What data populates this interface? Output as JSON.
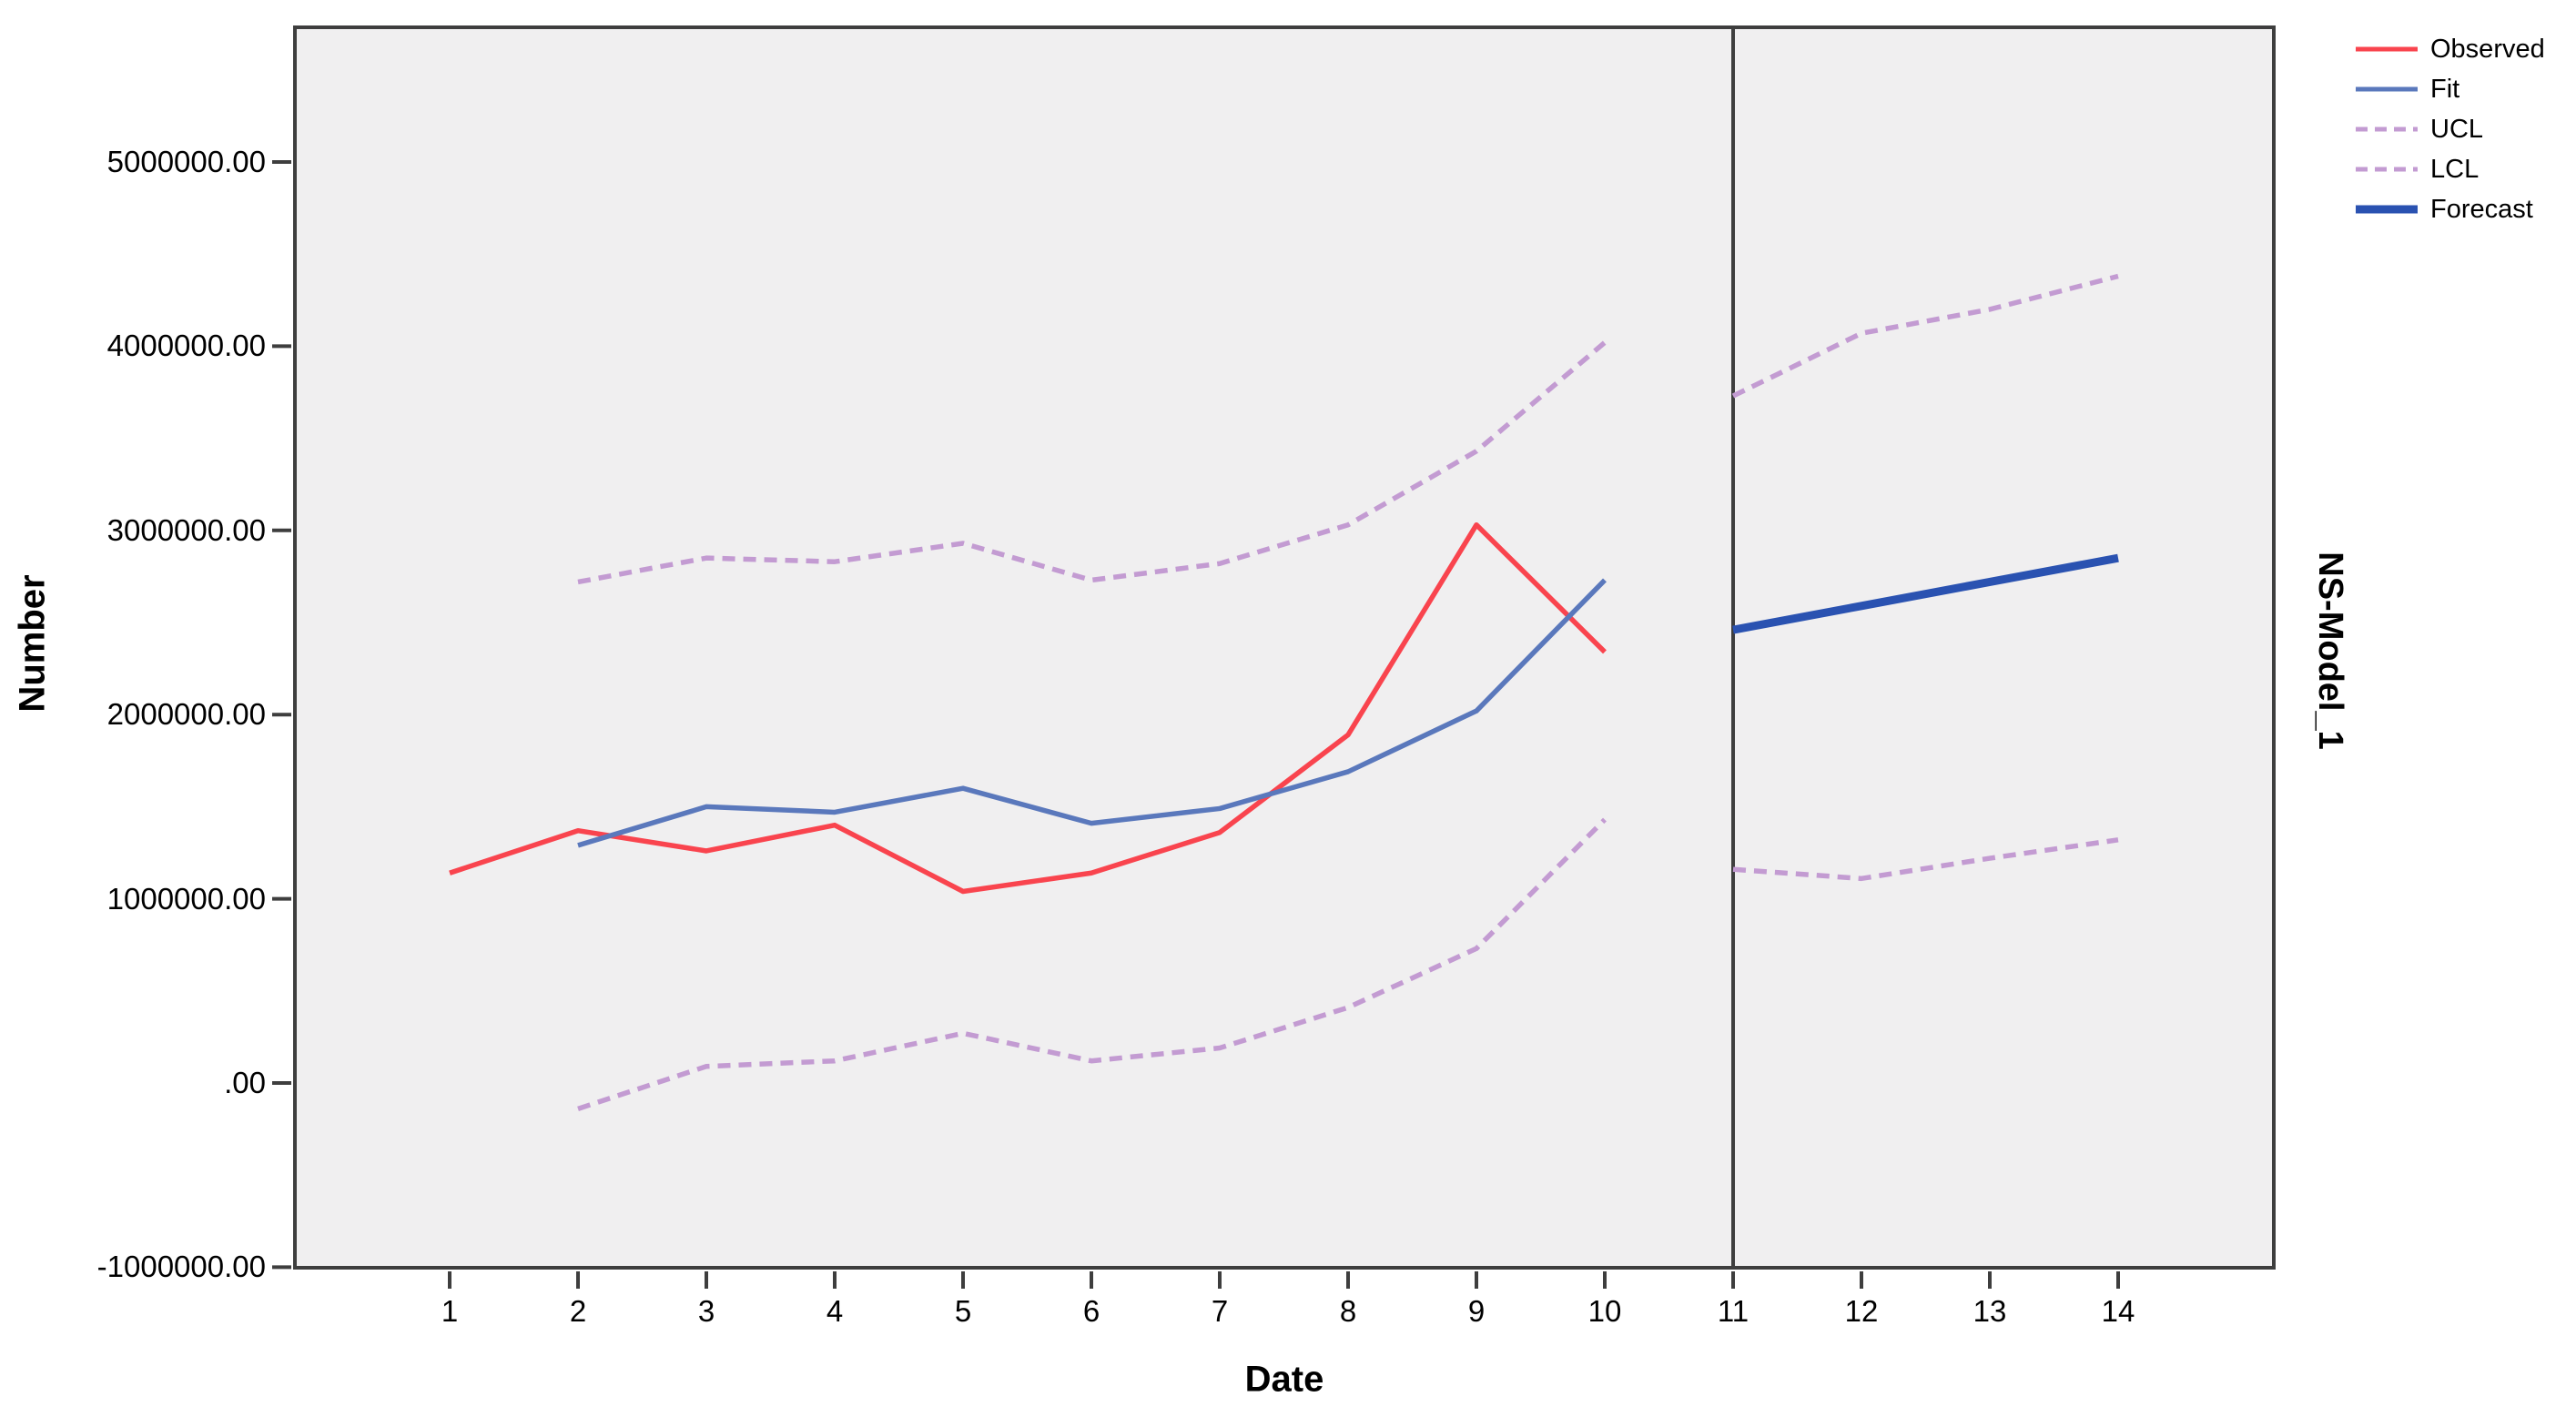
{
  "chart_data": {
    "type": "line",
    "title": "",
    "xlabel": "Date",
    "ylabel": "Number",
    "panel_label": "NS-Model_1",
    "grid": false,
    "legend_position": "top-right-outside",
    "xlim": [
      -0.2,
      15.2
    ],
    "ylim": [
      -1050000,
      5750000
    ],
    "forecast_boundary_x": 11,
    "x_ticks": [
      "1",
      "2",
      "3",
      "4",
      "5",
      "6",
      "7",
      "8",
      "9",
      "10",
      "11",
      "12",
      "13",
      "14"
    ],
    "y_axis_ticks": [
      {
        "value": 5000000,
        "label": "5000000.00"
      },
      {
        "value": 4000000,
        "label": "4000000.00"
      },
      {
        "value": 3000000,
        "label": "3000000.00"
      },
      {
        "value": 2000000,
        "label": "2000000.00"
      },
      {
        "value": 1000000,
        "label": "1000000.00"
      },
      {
        "value": 0,
        "label": ".00"
      },
      {
        "value": -1000000,
        "label": "-1000000.00"
      }
    ],
    "series": [
      {
        "name": "Observed",
        "color": "#F9444E",
        "style": "solid",
        "segments": [
          [
            [
              1,
              1140000
            ],
            [
              2,
              1370000
            ],
            [
              3,
              1260000
            ],
            [
              4,
              1400000
            ],
            [
              5,
              1040000
            ],
            [
              6,
              1140000
            ],
            [
              7,
              1360000
            ],
            [
              8,
              1890000
            ],
            [
              9,
              3030000
            ],
            [
              10,
              2340000
            ]
          ]
        ]
      },
      {
        "name": "Fit",
        "color": "#5A78BC",
        "style": "solid",
        "segments": [
          [
            [
              2,
              1290000
            ],
            [
              3,
              1500000
            ],
            [
              4,
              1470000
            ],
            [
              5,
              1600000
            ],
            [
              6,
              1410000
            ],
            [
              7,
              1490000
            ],
            [
              8,
              1690000
            ],
            [
              9,
              2020000
            ],
            [
              10,
              2730000
            ]
          ]
        ]
      },
      {
        "name": "UCL",
        "color": "#C39BD2",
        "style": "dashed",
        "segments": [
          [
            [
              2,
              2720000
            ],
            [
              3,
              2850000
            ],
            [
              4,
              2830000
            ],
            [
              5,
              2930000
            ],
            [
              6,
              2730000
            ],
            [
              7,
              2820000
            ],
            [
              8,
              3030000
            ],
            [
              9,
              3430000
            ],
            [
              10,
              4020000
            ]
          ],
          [
            [
              11,
              3730000
            ],
            [
              12,
              4070000
            ],
            [
              13,
              4200000
            ],
            [
              14,
              4380000
            ]
          ]
        ]
      },
      {
        "name": "LCL",
        "color": "#C39BD2",
        "style": "dashed",
        "segments": [
          [
            [
              2,
              -140000
            ],
            [
              3,
              90000
            ],
            [
              4,
              120000
            ],
            [
              5,
              270000
            ],
            [
              6,
              120000
            ],
            [
              7,
              190000
            ],
            [
              8,
              410000
            ],
            [
              9,
              730000
            ],
            [
              10,
              1430000
            ]
          ],
          [
            [
              11,
              1160000
            ],
            [
              12,
              1110000
            ],
            [
              13,
              1220000
            ],
            [
              14,
              1320000
            ]
          ]
        ]
      },
      {
        "name": "Forecast",
        "color": "#2A52B1",
        "style": "solid-bold",
        "segments": [
          [
            [
              11,
              2460000
            ],
            [
              12,
              2590000
            ],
            [
              13,
              2720000
            ],
            [
              14,
              2850000
            ]
          ]
        ]
      }
    ]
  },
  "legend": {
    "items": [
      {
        "label": "Observed",
        "color": "#F9444E",
        "style": "solid"
      },
      {
        "label": "Fit",
        "color": "#5A78BC",
        "style": "solid"
      },
      {
        "label": "UCL",
        "color": "#C39BD2",
        "style": "dashed"
      },
      {
        "label": "LCL",
        "color": "#C39BD2",
        "style": "dashed"
      },
      {
        "label": "Forecast",
        "color": "#2A52B1",
        "style": "solid-bold"
      }
    ]
  },
  "colors": {
    "plot_background": "#F0EFF0",
    "page_background": "#FFFFFF",
    "frame": "#3E3E3E",
    "observed": "#F9444E",
    "fit": "#5A78BC",
    "confidence_limits": "#C39BD2",
    "forecast": "#2A52B1"
  }
}
